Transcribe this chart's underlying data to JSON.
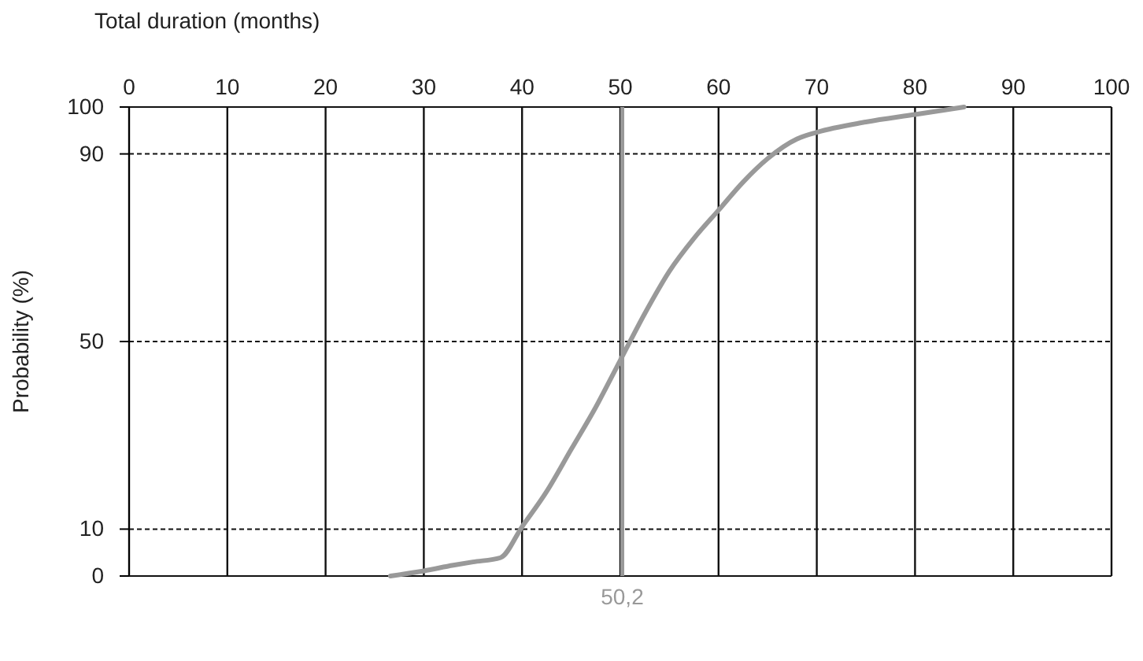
{
  "chart_data": {
    "type": "line",
    "xlabel": "Total duration (months)",
    "ylabel": "Probability (%)",
    "xlim": [
      0,
      100
    ],
    "xticks": [
      0,
      10,
      20,
      30,
      40,
      50,
      60,
      70,
      80,
      90,
      100
    ],
    "ylim": [
      0,
      100
    ],
    "yticks": [
      0,
      10,
      50,
      90,
      100
    ],
    "grid": true,
    "marker": "none",
    "line_style": "solid",
    "series": [
      {
        "color": "#999999",
        "x": [
          26.6,
          30,
          33,
          35,
          37.8,
          40,
          42.5,
          45,
          47.5,
          50,
          52.5,
          55,
          57.5,
          60,
          62.5,
          65,
          68,
          70,
          75,
          80,
          85
        ],
        "values": [
          0,
          1.1,
          2.3,
          3,
          3.9,
          10.5,
          18,
          27,
          36,
          46,
          56,
          65,
          72,
          78,
          84,
          89,
          93.2,
          94.6,
          96.8,
          98.4,
          100
        ]
      }
    ],
    "ref_lines": [
      {
        "axis": "x",
        "value": 50.2,
        "label": "50,2",
        "color": "#999999"
      }
    ]
  }
}
